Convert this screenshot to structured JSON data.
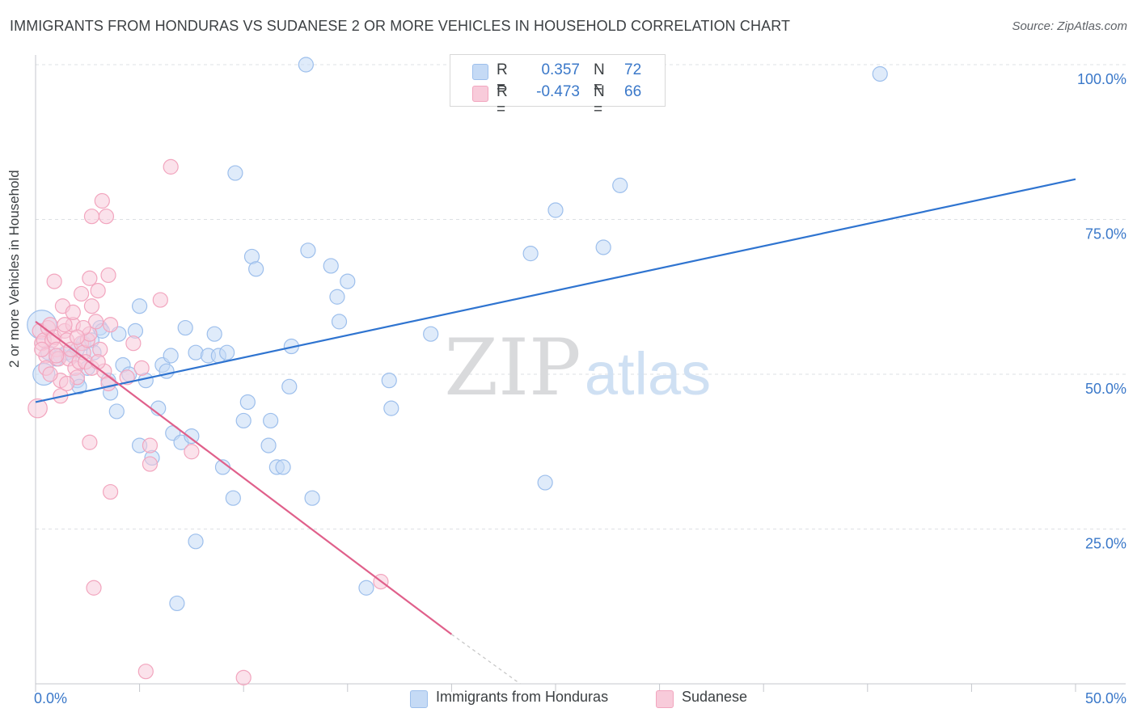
{
  "title": "IMMIGRANTS FROM HONDURAS VS SUDANESE 2 OR MORE VEHICLES IN HOUSEHOLD CORRELATION CHART",
  "source": "Source: ZipAtlas.com",
  "watermark": {
    "zip": "ZIP",
    "atlas": "atlas"
  },
  "legend": {
    "r_label": "R =",
    "n_label": "N =",
    "series": [
      {
        "name": "Immigrants from Honduras",
        "r": "0.357",
        "n": "72",
        "color": "#9dbfec",
        "fill": "#c5daf5",
        "line_color": "#2f74d0"
      },
      {
        "name": "Sudanese",
        "r": "-0.473",
        "n": "66",
        "color": "#f2a5be",
        "fill": "#f8cbda",
        "line_color": "#e0608b"
      }
    ]
  },
  "colors": {
    "value_text": "#3a78c9",
    "grid": "#dde0e4",
    "axis": "#c4c7cc"
  },
  "chart_data": {
    "type": "scatter",
    "title": "IMMIGRANTS FROM HONDURAS VS SUDANESE 2 OR MORE VEHICLES IN HOUSEHOLD CORRELATION CHART",
    "xlabel": "",
    "ylabel": "2 or more Vehicles in Household",
    "xlim": [
      0,
      50
    ],
    "ylim": [
      0,
      100
    ],
    "x_tick_labels": [
      "0.0%",
      "50.0%"
    ],
    "y_ticks": [
      25,
      50,
      75,
      100
    ],
    "y_tick_labels": [
      "25.0%",
      "50.0%",
      "75.0%",
      "100.0%"
    ],
    "legend_position": "bottom-center",
    "series": [
      {
        "name": "Immigrants from Honduras",
        "r": 0.357,
        "n": 72,
        "trend": {
          "x": [
            0,
            50
          ],
          "y": [
            45.5,
            81.5
          ]
        },
        "points": [
          {
            "x": 0.3,
            "y": 58,
            "s": 2
          },
          {
            "x": 0.4,
            "y": 50,
            "s": 1.5
          },
          {
            "x": 0.6,
            "y": 53.5,
            "s": 1
          },
          {
            "x": 1.2,
            "y": 53,
            "s": 1
          },
          {
            "x": 1.5,
            "y": 53.5,
            "s": 1
          },
          {
            "x": 2.0,
            "y": 49,
            "s": 1
          },
          {
            "x": 2.1,
            "y": 48,
            "s": 1
          },
          {
            "x": 2.3,
            "y": 55,
            "s": 1
          },
          {
            "x": 2.5,
            "y": 51,
            "s": 1
          },
          {
            "x": 2.7,
            "y": 55.5,
            "s": 1
          },
          {
            "x": 2.8,
            "y": 53.5,
            "s": 1
          },
          {
            "x": 3.1,
            "y": 57.5,
            "s": 1
          },
          {
            "x": 3.2,
            "y": 57,
            "s": 1
          },
          {
            "x": 3.5,
            "y": 49,
            "s": 1
          },
          {
            "x": 3.6,
            "y": 47,
            "s": 1
          },
          {
            "x": 3.9,
            "y": 44,
            "s": 1
          },
          {
            "x": 4.0,
            "y": 56.5,
            "s": 1
          },
          {
            "x": 4.2,
            "y": 51.5,
            "s": 1
          },
          {
            "x": 4.5,
            "y": 50,
            "s": 1
          },
          {
            "x": 4.8,
            "y": 57,
            "s": 1
          },
          {
            "x": 5.0,
            "y": 61,
            "s": 1
          },
          {
            "x": 5.0,
            "y": 38.5,
            "s": 1
          },
          {
            "x": 5.3,
            "y": 49,
            "s": 1
          },
          {
            "x": 5.6,
            "y": 36.5,
            "s": 1
          },
          {
            "x": 5.9,
            "y": 44.5,
            "s": 1
          },
          {
            "x": 6.1,
            "y": 51.5,
            "s": 1
          },
          {
            "x": 6.3,
            "y": 50.5,
            "s": 1
          },
          {
            "x": 6.5,
            "y": 53,
            "s": 1
          },
          {
            "x": 6.6,
            "y": 40.5,
            "s": 1
          },
          {
            "x": 6.8,
            "y": 13,
            "s": 1
          },
          {
            "x": 7.0,
            "y": 39,
            "s": 1
          },
          {
            "x": 7.2,
            "y": 57.5,
            "s": 1
          },
          {
            "x": 7.5,
            "y": 40,
            "s": 1
          },
          {
            "x": 7.7,
            "y": 23,
            "s": 1
          },
          {
            "x": 7.7,
            "y": 53.5,
            "s": 1
          },
          {
            "x": 8.3,
            "y": 53,
            "s": 1
          },
          {
            "x": 8.6,
            "y": 56.5,
            "s": 1
          },
          {
            "x": 8.8,
            "y": 53,
            "s": 1
          },
          {
            "x": 9.0,
            "y": 35,
            "s": 1
          },
          {
            "x": 9.2,
            "y": 53.5,
            "s": 1
          },
          {
            "x": 9.5,
            "y": 30,
            "s": 1
          },
          {
            "x": 9.6,
            "y": 82.5,
            "s": 1
          },
          {
            "x": 10.0,
            "y": 42.5,
            "s": 1
          },
          {
            "x": 10.2,
            "y": 45.5,
            "s": 1
          },
          {
            "x": 10.4,
            "y": 69,
            "s": 1
          },
          {
            "x": 10.6,
            "y": 67,
            "s": 1
          },
          {
            "x": 11.2,
            "y": 38.5,
            "s": 1
          },
          {
            "x": 11.3,
            "y": 42.5,
            "s": 1
          },
          {
            "x": 11.6,
            "y": 35,
            "s": 1
          },
          {
            "x": 11.9,
            "y": 35,
            "s": 1
          },
          {
            "x": 12.2,
            "y": 48,
            "s": 1
          },
          {
            "x": 12.3,
            "y": 54.5,
            "s": 1
          },
          {
            "x": 13.0,
            "y": 100,
            "s": 1
          },
          {
            "x": 13.1,
            "y": 70,
            "s": 1
          },
          {
            "x": 13.3,
            "y": 30,
            "s": 1
          },
          {
            "x": 14.2,
            "y": 67.5,
            "s": 1
          },
          {
            "x": 14.5,
            "y": 62.5,
            "s": 1
          },
          {
            "x": 14.6,
            "y": 58.5,
            "s": 1
          },
          {
            "x": 15.0,
            "y": 65,
            "s": 1
          },
          {
            "x": 15.9,
            "y": 15.5,
            "s": 1
          },
          {
            "x": 17.0,
            "y": 49,
            "s": 1
          },
          {
            "x": 17.1,
            "y": 44.5,
            "s": 1
          },
          {
            "x": 19.0,
            "y": 56.5,
            "s": 1
          },
          {
            "x": 23.8,
            "y": 69.5,
            "s": 1
          },
          {
            "x": 24.5,
            "y": 32.5,
            "s": 1
          },
          {
            "x": 25.0,
            "y": 76.5,
            "s": 1
          },
          {
            "x": 27.3,
            "y": 70.5,
            "s": 1
          },
          {
            "x": 28.1,
            "y": 80.5,
            "s": 1
          },
          {
            "x": 40.6,
            "y": 98.5,
            "s": 1
          },
          {
            "x": 1.8,
            "y": 53,
            "s": 1
          },
          {
            "x": 1.0,
            "y": 52.5,
            "s": 1
          },
          {
            "x": 2.0,
            "y": 54,
            "s": 1
          }
        ]
      },
      {
        "name": "Sudanese",
        "r": -0.473,
        "n": 66,
        "trend": {
          "x": [
            0,
            20
          ],
          "y": [
            58.5,
            8
          ]
        },
        "trend_dashed": {
          "x": [
            20,
            23.3
          ],
          "y": [
            8,
            0
          ]
        },
        "points": [
          {
            "x": 0.1,
            "y": 44.5,
            "s": 1.3
          },
          {
            "x": 0.2,
            "y": 57,
            "s": 1
          },
          {
            "x": 0.3,
            "y": 55,
            "s": 1
          },
          {
            "x": 0.4,
            "y": 55.5,
            "s": 1
          },
          {
            "x": 0.5,
            "y": 53,
            "s": 1
          },
          {
            "x": 0.6,
            "y": 57.5,
            "s": 1
          },
          {
            "x": 0.7,
            "y": 58,
            "s": 1
          },
          {
            "x": 0.8,
            "y": 55.5,
            "s": 1
          },
          {
            "x": 0.9,
            "y": 56,
            "s": 1
          },
          {
            "x": 1.0,
            "y": 54,
            "s": 1
          },
          {
            "x": 1.1,
            "y": 52.5,
            "s": 1
          },
          {
            "x": 1.2,
            "y": 49,
            "s": 1
          },
          {
            "x": 1.2,
            "y": 46.5,
            "s": 1
          },
          {
            "x": 0.9,
            "y": 65,
            "s": 1
          },
          {
            "x": 1.3,
            "y": 61,
            "s": 1
          },
          {
            "x": 1.4,
            "y": 57,
            "s": 1
          },
          {
            "x": 1.5,
            "y": 55.5,
            "s": 1
          },
          {
            "x": 1.6,
            "y": 52.5,
            "s": 1
          },
          {
            "x": 1.7,
            "y": 54,
            "s": 1
          },
          {
            "x": 1.8,
            "y": 58,
            "s": 1
          },
          {
            "x": 1.9,
            "y": 51,
            "s": 1
          },
          {
            "x": 2.0,
            "y": 49.5,
            "s": 1
          },
          {
            "x": 2.1,
            "y": 52,
            "s": 1
          },
          {
            "x": 2.2,
            "y": 55,
            "s": 1
          },
          {
            "x": 2.3,
            "y": 53.5,
            "s": 1
          },
          {
            "x": 2.4,
            "y": 52,
            "s": 1
          },
          {
            "x": 2.5,
            "y": 55.5,
            "s": 1
          },
          {
            "x": 2.6,
            "y": 56.5,
            "s": 1
          },
          {
            "x": 2.7,
            "y": 51,
            "s": 1
          },
          {
            "x": 2.9,
            "y": 58.5,
            "s": 1
          },
          {
            "x": 3.1,
            "y": 54,
            "s": 1
          },
          {
            "x": 3.3,
            "y": 50.5,
            "s": 1
          },
          {
            "x": 3.5,
            "y": 48.5,
            "s": 1
          },
          {
            "x": 2.2,
            "y": 63,
            "s": 1
          },
          {
            "x": 2.6,
            "y": 65.5,
            "s": 1
          },
          {
            "x": 2.7,
            "y": 61,
            "s": 1
          },
          {
            "x": 3.0,
            "y": 63.5,
            "s": 1
          },
          {
            "x": 3.2,
            "y": 78,
            "s": 1
          },
          {
            "x": 3.4,
            "y": 75.5,
            "s": 1
          },
          {
            "x": 2.7,
            "y": 75.5,
            "s": 1
          },
          {
            "x": 3.5,
            "y": 66,
            "s": 1
          },
          {
            "x": 3.6,
            "y": 58,
            "s": 1
          },
          {
            "x": 2.6,
            "y": 39,
            "s": 1
          },
          {
            "x": 3.6,
            "y": 31,
            "s": 1
          },
          {
            "x": 2.8,
            "y": 15.5,
            "s": 1
          },
          {
            "x": 4.7,
            "y": 55,
            "s": 1
          },
          {
            "x": 5.1,
            "y": 51,
            "s": 1
          },
          {
            "x": 5.5,
            "y": 38.5,
            "s": 1
          },
          {
            "x": 5.5,
            "y": 35.5,
            "s": 1
          },
          {
            "x": 6.0,
            "y": 62,
            "s": 1
          },
          {
            "x": 6.5,
            "y": 83.5,
            "s": 1
          },
          {
            "x": 7.5,
            "y": 37.5,
            "s": 1
          },
          {
            "x": 5.3,
            "y": 2,
            "s": 1
          },
          {
            "x": 10.0,
            "y": 1,
            "s": 1
          },
          {
            "x": 16.6,
            "y": 16.5,
            "s": 1
          },
          {
            "x": 0.5,
            "y": 51,
            "s": 1
          },
          {
            "x": 0.7,
            "y": 50,
            "s": 1
          },
          {
            "x": 1.5,
            "y": 48.5,
            "s": 1
          },
          {
            "x": 1.8,
            "y": 60,
            "s": 1
          },
          {
            "x": 2.3,
            "y": 57.5,
            "s": 1
          },
          {
            "x": 0.3,
            "y": 54,
            "s": 1
          },
          {
            "x": 1.0,
            "y": 53,
            "s": 1
          },
          {
            "x": 4.4,
            "y": 49.5,
            "s": 1
          },
          {
            "x": 3.0,
            "y": 52,
            "s": 1
          },
          {
            "x": 1.4,
            "y": 58,
            "s": 1
          },
          {
            "x": 2.0,
            "y": 56,
            "s": 1
          }
        ]
      }
    ]
  }
}
